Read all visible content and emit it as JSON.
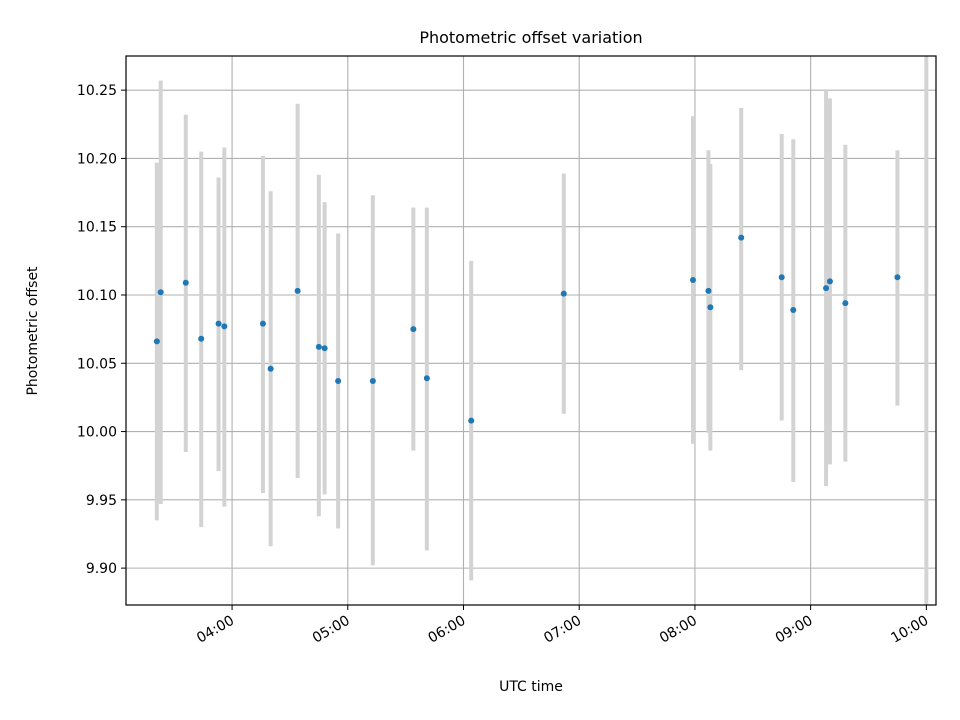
{
  "chart_data": {
    "type": "scatter",
    "title": "Photometric offset variation",
    "xlabel": "UTC time",
    "ylabel": "Photometric offset",
    "xlim": [
      "03:05",
      "10:05"
    ],
    "ylim": [
      9.873,
      10.275
    ],
    "x_ticks": [
      "04:00",
      "05:00",
      "06:00",
      "07:00",
      "08:00",
      "09:00",
      "10:00"
    ],
    "y_ticks": [
      9.9,
      9.95,
      10.0,
      10.05,
      10.1,
      10.15,
      10.2,
      10.25
    ],
    "grid": true,
    "colors": {
      "point": "#1f77b4",
      "errorbar": "#d3d3d3",
      "grid": "#b0b0b0"
    },
    "points": [
      {
        "x": "03:21",
        "y": 10.066,
        "ylow": 9.935,
        "yhigh": 10.197
      },
      {
        "x": "03:23",
        "y": 10.102,
        "ylow": 9.947,
        "yhigh": 10.257
      },
      {
        "x": "03:36",
        "y": 10.109,
        "ylow": 9.985,
        "yhigh": 10.232
      },
      {
        "x": "03:44",
        "y": 10.068,
        "ylow": 9.93,
        "yhigh": 10.205
      },
      {
        "x": "03:53",
        "y": 10.079,
        "ylow": 9.971,
        "yhigh": 10.186
      },
      {
        "x": "03:56",
        "y": 10.077,
        "ylow": 9.945,
        "yhigh": 10.208
      },
      {
        "x": "04:16",
        "y": 10.079,
        "ylow": 9.955,
        "yhigh": 10.202
      },
      {
        "x": "04:20",
        "y": 10.046,
        "ylow": 9.916,
        "yhigh": 10.176
      },
      {
        "x": "04:34",
        "y": 10.103,
        "ylow": 9.966,
        "yhigh": 10.24
      },
      {
        "x": "04:45",
        "y": 10.062,
        "ylow": 9.938,
        "yhigh": 10.188
      },
      {
        "x": "04:48",
        "y": 10.061,
        "ylow": 9.954,
        "yhigh": 10.168
      },
      {
        "x": "04:55",
        "y": 10.037,
        "ylow": 9.929,
        "yhigh": 10.145
      },
      {
        "x": "05:13",
        "y": 10.037,
        "ylow": 9.902,
        "yhigh": 10.173
      },
      {
        "x": "05:34",
        "y": 10.075,
        "ylow": 9.986,
        "yhigh": 10.164
      },
      {
        "x": "05:41",
        "y": 10.039,
        "ylow": 9.913,
        "yhigh": 10.164
      },
      {
        "x": "06:04",
        "y": 10.008,
        "ylow": 9.891,
        "yhigh": 10.125
      },
      {
        "x": "06:52",
        "y": 10.101,
        "ylow": 10.013,
        "yhigh": 10.189
      },
      {
        "x": "07:59",
        "y": 10.111,
        "ylow": 9.991,
        "yhigh": 10.231
      },
      {
        "x": "08:07",
        "y": 10.103,
        "ylow": 9.999,
        "yhigh": 10.206
      },
      {
        "x": "08:08",
        "y": 10.091,
        "ylow": 9.986,
        "yhigh": 10.196
      },
      {
        "x": "08:24",
        "y": 10.142,
        "ylow": 10.045,
        "yhigh": 10.237
      },
      {
        "x": "08:45",
        "y": 10.113,
        "ylow": 10.008,
        "yhigh": 10.218
      },
      {
        "x": "08:51",
        "y": 10.089,
        "ylow": 9.963,
        "yhigh": 10.214
      },
      {
        "x": "09:08",
        "y": 10.105,
        "ylow": 9.96,
        "yhigh": 10.25
      },
      {
        "x": "09:10",
        "y": 10.11,
        "ylow": 9.976,
        "yhigh": 10.244
      },
      {
        "x": "09:18",
        "y": 10.094,
        "ylow": 9.978,
        "yhigh": 10.21
      },
      {
        "x": "09:45",
        "y": 10.113,
        "ylow": 10.019,
        "yhigh": 10.206
      },
      {
        "x": "10:00",
        "y": null,
        "ylow": 9.873,
        "yhigh": 10.275
      }
    ]
  }
}
